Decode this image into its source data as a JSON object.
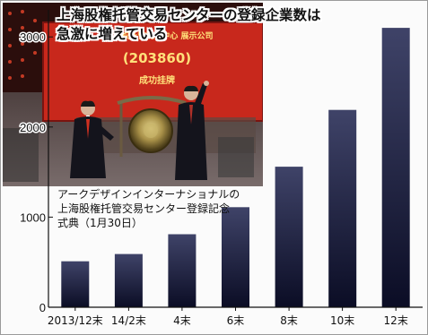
{
  "title_lines": [
    "上海股権托管交易センターの登録企業数は",
    "急激に増えている"
  ],
  "photo": {
    "caption_lines": [
      "アークデザインインターナショナルの",
      "上海股権托管交易センター登録記念",
      "式典（1月30日）"
    ],
    "banner_code": "(203860)",
    "banner_top": "上海股权托管交易中心 展示公司",
    "banner_bottom": "成功挂牌"
  },
  "colors": {
    "bar_top": "#3f4368",
    "bar_bottom": "#0b0d25",
    "banner": "#c8281c"
  },
  "chart_data": {
    "type": "bar",
    "title": "上海股権托管交易センターの登録企業数は急激に増えている",
    "categories": [
      "2013/12末",
      "14/2末",
      "4末",
      "6末",
      "8末",
      "10末",
      "12末"
    ],
    "values": [
      510,
      590,
      810,
      1110,
      1560,
      2190,
      3100
    ],
    "ylim": [
      0,
      3300
    ],
    "yticks": [
      0,
      1000,
      2000,
      3000
    ],
    "grid": false,
    "xlabel": "",
    "ylabel": ""
  }
}
